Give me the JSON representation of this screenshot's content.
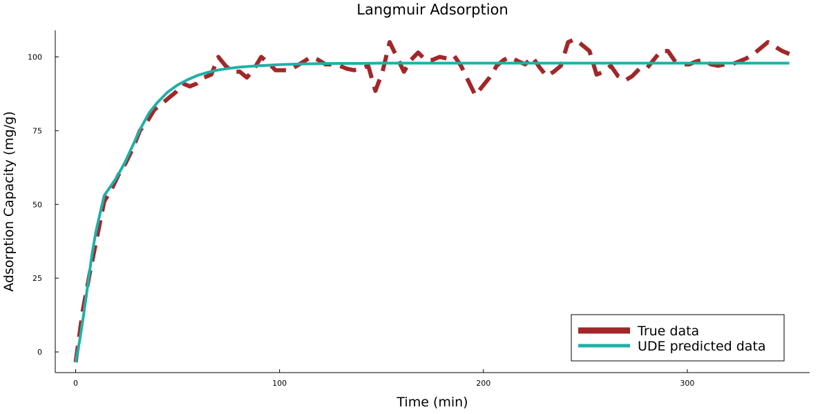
{
  "chart_data": {
    "type": "line",
    "title": "Langmuir Adsorption",
    "xlabel": "Time (min)",
    "ylabel": "Adsorption Capacity (mg/g)",
    "xlim": [
      -10,
      360
    ],
    "ylim": [
      -7,
      109
    ],
    "xticks": [
      0,
      100,
      200,
      300
    ],
    "yticks": [
      0,
      25,
      50,
      75,
      100
    ],
    "grid": false,
    "legend_position": "bottom-right",
    "series": [
      {
        "name": "True data",
        "color": "#a0282a",
        "style": "dashed",
        "x": [
          0,
          3.5,
          7,
          10.5,
          14,
          17.5,
          21,
          24.5,
          28,
          31.5,
          35,
          38.5,
          42,
          45.5,
          49,
          52.5,
          56,
          59.5,
          63,
          66.5,
          70,
          73.5,
          77,
          80.5,
          84,
          87.5,
          91,
          94.5,
          98,
          101.5,
          105,
          108.5,
          112,
          115.5,
          119,
          122.5,
          126,
          129.5,
          133,
          136.5,
          140,
          143.5,
          147,
          150.5,
          154,
          157.5,
          161,
          164.5,
          168,
          171.5,
          175,
          178.5,
          182,
          185.5,
          189,
          192.5,
          196,
          199.5,
          203,
          206.5,
          210,
          213.5,
          217,
          220.5,
          224,
          227.5,
          231,
          234.5,
          238,
          241.5,
          245,
          248.5,
          252,
          255.5,
          259,
          262.5,
          266,
          269.5,
          273,
          276.5,
          280,
          283.5,
          287,
          290.5,
          294,
          297.5,
          301,
          304.5,
          308,
          311.5,
          315,
          318.5,
          322,
          325.5,
          329,
          332.5,
          336,
          339.5,
          343,
          346.5,
          350
        ],
        "values": [
          -3.5,
          14,
          27,
          39,
          51,
          55,
          60,
          64,
          69,
          75,
          78,
          82,
          84,
          86,
          88,
          91,
          90,
          91,
          93,
          94,
          100,
          97,
          95,
          95,
          93,
          96,
          100,
          98,
          95.5,
          95.5,
          95.5,
          97,
          98.5,
          100,
          99,
          97.5,
          97.5,
          97,
          96,
          95.5,
          96,
          97,
          88.5,
          95,
          105,
          100,
          95,
          99,
          101.5,
          99,
          99,
          100,
          99.5,
          100.5,
          97,
          92,
          87,
          90,
          93,
          97,
          99,
          100,
          98.5,
          97.5,
          100,
          96.5,
          93.5,
          95,
          97,
          105,
          106,
          104,
          102,
          94,
          95,
          97,
          93.5,
          92,
          93.5,
          96,
          96,
          99,
          102,
          102,
          98.5,
          97.5,
          97.5,
          98.5,
          99,
          97.5,
          97,
          97.5,
          97.5,
          98.5,
          99.5,
          101,
          103,
          105,
          103.5,
          102,
          101
        ]
      },
      {
        "name": "UDE predicted data",
        "color": "#1fb0a7",
        "style": "solid",
        "x": [
          0,
          2,
          4,
          6,
          8,
          10,
          12,
          14,
          17,
          20,
          24,
          28,
          32,
          36,
          40,
          45,
          50,
          55,
          60,
          65,
          70,
          75,
          80,
          85,
          90,
          95,
          100,
          110,
          120,
          130,
          140,
          150,
          160,
          180,
          200,
          220,
          240,
          260,
          280,
          300,
          320,
          340,
          350
        ],
        "values": [
          -3.5,
          4,
          13,
          23,
          33,
          41,
          47,
          53,
          56,
          59,
          64,
          70,
          76,
          81,
          84.5,
          88,
          90.5,
          92.3,
          93.8,
          94.8,
          95.6,
          96.1,
          96.5,
          96.8,
          97,
          97.2,
          97.4,
          97.6,
          97.7,
          97.8,
          97.8,
          97.9,
          97.9,
          97.9,
          97.9,
          97.9,
          97.9,
          97.9,
          97.9,
          97.9,
          97.9,
          97.9,
          97.9
        ]
      }
    ]
  }
}
